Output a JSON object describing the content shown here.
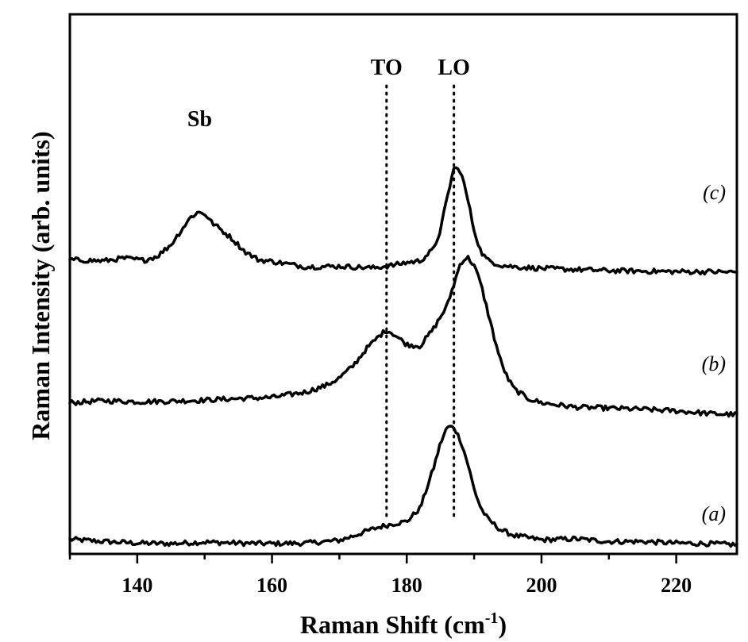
{
  "chart_data": {
    "type": "line",
    "title": "",
    "xlabel": "Raman Shift (cm",
    "xlabel_sup": "-1",
    "xlabel_close": ")",
    "ylabel": "Raman Intensity (arb. units)",
    "xlim": [
      130,
      229
    ],
    "ylim": [
      0,
      100
    ],
    "xticks": [
      140,
      160,
      180,
      200,
      220
    ],
    "xtick_labels": [
      "140",
      "160",
      "180",
      "200",
      "220"
    ],
    "y_ticks_shown": false,
    "grid": false,
    "legend": "none",
    "line_color": "#000000",
    "annotations": {
      "sb": {
        "text": "Sb",
        "x": 149.5
      },
      "to": {
        "text": "TO",
        "x": 177.0
      },
      "lo": {
        "text": "LO",
        "x": 187.0
      }
    },
    "series": [
      {
        "name": "(a)",
        "x": [
          130,
          135,
          140,
          145,
          150,
          155,
          160,
          165,
          170,
          172,
          174,
          176,
          178,
          180,
          182,
          184,
          185,
          186,
          187,
          188,
          189,
          190,
          191,
          192,
          194,
          196,
          200,
          205,
          210,
          215,
          220,
          225,
          229
        ],
        "y": [
          2.7,
          2.3,
          2.0,
          1.9,
          2.2,
          2.0,
          1.9,
          2.0,
          2.5,
          3.3,
          4.2,
          5.0,
          5.6,
          6.0,
          8.5,
          16.0,
          20.5,
          23.5,
          23.5,
          21.0,
          17.0,
          12.0,
          8.5,
          6.5,
          4.4,
          3.4,
          2.6,
          2.8,
          2.3,
          2.3,
          2.0,
          1.9,
          1.7
        ]
      },
      {
        "name": "(b)",
        "x": [
          130,
          135,
          140,
          145,
          150,
          155,
          160,
          165,
          168,
          170,
          172,
          174,
          176,
          177,
          178,
          180,
          182,
          184,
          186,
          187,
          188,
          189,
          190,
          191,
          192,
          193,
          194,
          195,
          196,
          198,
          200,
          205,
          210,
          215,
          220,
          225,
          229
        ],
        "y": [
          28.0,
          28.4,
          28.2,
          28.3,
          28.5,
          28.8,
          29.0,
          30.0,
          31.2,
          32.6,
          34.8,
          38.0,
          40.5,
          41.5,
          40.8,
          38.8,
          38.5,
          41.8,
          46.0,
          50.0,
          54.0,
          55.0,
          53.5,
          50.0,
          45.0,
          40.0,
          35.5,
          32.5,
          30.5,
          28.8,
          28.0,
          27.2,
          27.0,
          26.8,
          26.5,
          26.0,
          25.8
        ]
      },
      {
        "name": "(c)",
        "x": [
          130,
          135,
          138,
          141,
          143,
          145,
          147,
          148,
          149,
          150,
          151,
          152,
          154,
          156,
          158,
          160,
          165,
          170,
          175,
          178,
          180,
          182,
          184,
          185,
          186,
          187,
          188,
          189,
          190,
          191,
          192,
          194,
          196,
          200,
          205,
          210,
          215,
          220,
          225,
          229
        ],
        "y": [
          54.5,
          54.3,
          54.8,
          54.4,
          55.2,
          57.3,
          60.8,
          62.5,
          63.3,
          63.1,
          61.5,
          60.5,
          58.5,
          56.0,
          54.5,
          54.2,
          53.2,
          53.3,
          53.0,
          53.5,
          54.0,
          54.3,
          56.5,
          60.0,
          66.0,
          71.5,
          71.0,
          66.0,
          60.0,
          56.0,
          54.4,
          53.5,
          53.2,
          52.9,
          52.7,
          52.5,
          52.4,
          52.3,
          52.3,
          52.2
        ]
      }
    ]
  }
}
